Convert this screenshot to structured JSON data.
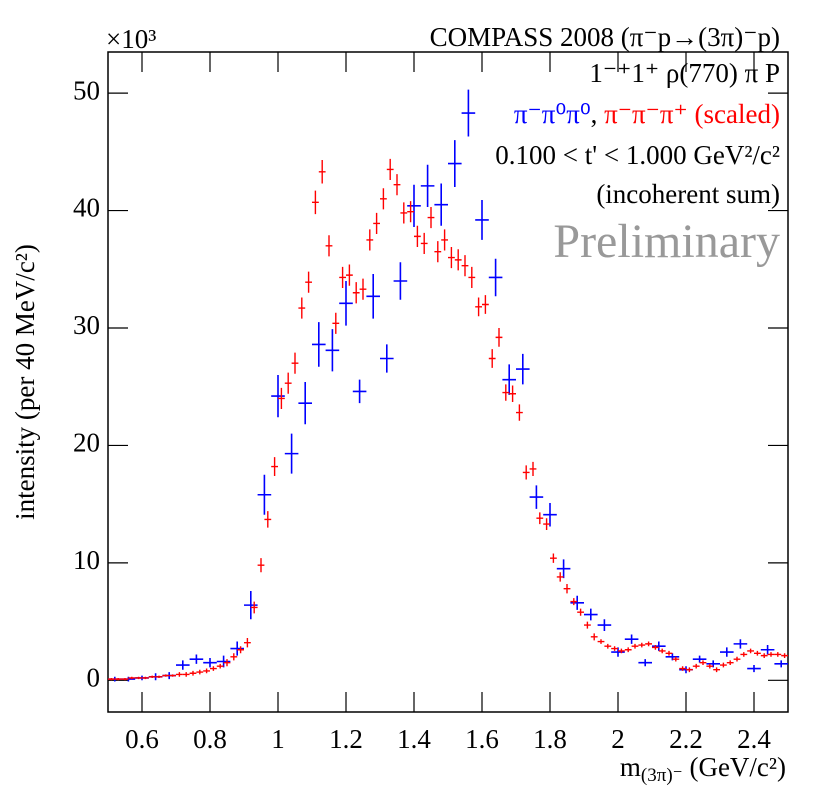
{
  "chart_data": {
    "type": "errorbar",
    "title": "COMPASS 2008 (π⁻p→(3π)⁻p)",
    "annotations": [
      "1⁻⁺1⁺ ρ(770) π P",
      "0.100 < t' < 1.000 GeV²/c²",
      "(incoherent sum)",
      "Preliminary"
    ],
    "legend_separator": ",",
    "y_multiplier": "×10³",
    "y_label": "intensity (per 40 MeV/c²)",
    "x_label": {
      "main": "m",
      "subscript": "(3π)⁻",
      "unit": "(GeV/c²)"
    },
    "xlim": [
      0.5,
      2.5
    ],
    "ylim": [
      -2.7,
      53.5
    ],
    "xticks": [
      0.6,
      0.8,
      1,
      1.2,
      1.4,
      1.6,
      1.8,
      2,
      2.2,
      2.4
    ],
    "yticks": [
      0,
      10,
      20,
      30,
      40,
      50
    ],
    "grid": false,
    "series": [
      {
        "name": "π⁻π⁰π⁰",
        "color": "#0000ff",
        "x": [
          0.52,
          0.56,
          0.6,
          0.64,
          0.68,
          0.72,
          0.76,
          0.8,
          0.84,
          0.88,
          0.92,
          0.96,
          1.0,
          1.04,
          1.08,
          1.12,
          1.16,
          1.2,
          1.24,
          1.28,
          1.32,
          1.36,
          1.4,
          1.44,
          1.48,
          1.52,
          1.56,
          1.6,
          1.64,
          1.68,
          1.72,
          1.76,
          1.8,
          1.84,
          1.88,
          1.92,
          1.96,
          2.0,
          2.04,
          2.08,
          2.12,
          2.16,
          2.2,
          2.24,
          2.28,
          2.32,
          2.36,
          2.4,
          2.44,
          2.48
        ],
        "values": [
          0.1,
          0.1,
          0.2,
          0.3,
          0.4,
          1.3,
          1.8,
          1.5,
          1.6,
          2.7,
          6.4,
          15.8,
          24.2,
          19.3,
          23.6,
          28.6,
          28.1,
          32.1,
          24.6,
          32.7,
          27.4,
          34.0,
          40.4,
          42.1,
          40.5,
          44.0,
          48.3,
          39.2,
          34.3,
          25.6,
          26.5,
          15.6,
          14.1,
          9.5,
          6.6,
          5.6,
          4.7,
          2.4,
          3.5,
          1.5,
          2.9,
          2.0,
          0.9,
          1.8,
          1.4,
          2.4,
          3.1,
          1.0,
          2.6,
          1.4
        ],
        "errors": [
          0.2,
          0.2,
          0.2,
          0.3,
          0.3,
          0.4,
          0.4,
          0.4,
          0.5,
          0.6,
          1.2,
          1.7,
          1.8,
          1.7,
          1.8,
          1.9,
          1.8,
          1.9,
          1.0,
          1.9,
          1.2,
          1.6,
          1.8,
          1.8,
          1.8,
          2.0,
          2.0,
          1.7,
          1.6,
          1.3,
          1.3,
          1.0,
          1.0,
          0.8,
          0.6,
          0.5,
          0.5,
          0.4,
          0.4,
          0.3,
          0.4,
          0.3,
          0.3,
          0.3,
          0.3,
          0.4,
          0.4,
          0.3,
          0.4,
          0.3
        ]
      },
      {
        "name": "π⁻π⁻π⁺ (scaled)",
        "color": "#ff0000",
        "x": [
          0.51,
          0.53,
          0.55,
          0.57,
          0.59,
          0.61,
          0.63,
          0.65,
          0.67,
          0.69,
          0.71,
          0.73,
          0.75,
          0.77,
          0.79,
          0.81,
          0.83,
          0.85,
          0.87,
          0.89,
          0.91,
          0.93,
          0.95,
          0.97,
          0.99,
          1.01,
          1.03,
          1.05,
          1.07,
          1.09,
          1.11,
          1.13,
          1.15,
          1.17,
          1.19,
          1.21,
          1.23,
          1.25,
          1.27,
          1.29,
          1.31,
          1.33,
          1.35,
          1.37,
          1.39,
          1.41,
          1.43,
          1.45,
          1.47,
          1.49,
          1.51,
          1.53,
          1.55,
          1.57,
          1.59,
          1.61,
          1.63,
          1.65,
          1.67,
          1.69,
          1.71,
          1.73,
          1.75,
          1.77,
          1.79,
          1.81,
          1.83,
          1.85,
          1.87,
          1.89,
          1.91,
          1.93,
          1.95,
          1.97,
          1.99,
          2.01,
          2.03,
          2.05,
          2.07,
          2.09,
          2.11,
          2.13,
          2.15,
          2.17,
          2.19,
          2.21,
          2.23,
          2.25,
          2.27,
          2.29,
          2.31,
          2.33,
          2.35,
          2.37,
          2.39,
          2.41,
          2.43,
          2.45,
          2.47,
          2.49
        ],
        "values": [
          0.1,
          0.1,
          0.1,
          0.2,
          0.2,
          0.2,
          0.3,
          0.3,
          0.4,
          0.4,
          0.5,
          0.5,
          0.6,
          0.7,
          0.8,
          1.0,
          1.2,
          1.5,
          2.0,
          2.6,
          3.2,
          6.2,
          9.8,
          13.7,
          18.2,
          24.0,
          25.3,
          27.0,
          31.7,
          33.9,
          40.7,
          43.3,
          37.0,
          30.4,
          34.3,
          34.5,
          33.0,
          33.3,
          37.5,
          38.9,
          41.0,
          43.5,
          42.2,
          39.8,
          39.9,
          37.8,
          37.2,
          39.4,
          36.5,
          37.5,
          36.0,
          35.8,
          35.3,
          34.3,
          31.8,
          32.0,
          27.4,
          29.2,
          24.5,
          24.4,
          22.8,
          17.7,
          18.0,
          13.8,
          13.3,
          10.4,
          8.8,
          7.8,
          6.7,
          5.8,
          4.7,
          3.7,
          3.3,
          2.9,
          2.7,
          2.5,
          2.6,
          2.9,
          3.0,
          3.1,
          2.8,
          2.5,
          2.3,
          1.8,
          1.0,
          0.9,
          1.2,
          1.5,
          1.2,
          0.9,
          1.3,
          1.5,
          1.8,
          2.2,
          2.5,
          2.3,
          2.1,
          2.2,
          2.2,
          2.1
        ],
        "errors": [
          0.1,
          0.1,
          0.1,
          0.1,
          0.1,
          0.1,
          0.1,
          0.1,
          0.1,
          0.1,
          0.2,
          0.2,
          0.2,
          0.2,
          0.2,
          0.2,
          0.2,
          0.3,
          0.3,
          0.3,
          0.4,
          0.5,
          0.6,
          0.7,
          0.8,
          0.9,
          0.9,
          0.9,
          0.9,
          0.9,
          1.0,
          1.0,
          0.9,
          0.9,
          0.9,
          0.9,
          0.9,
          0.9,
          0.9,
          0.9,
          0.9,
          0.9,
          0.9,
          0.9,
          0.9,
          0.9,
          0.9,
          0.9,
          0.9,
          0.9,
          0.9,
          0.9,
          0.9,
          0.9,
          0.8,
          0.8,
          0.8,
          0.8,
          0.7,
          0.7,
          0.7,
          0.6,
          0.6,
          0.5,
          0.5,
          0.4,
          0.4,
          0.4,
          0.3,
          0.3,
          0.3,
          0.3,
          0.2,
          0.2,
          0.2,
          0.2,
          0.2,
          0.2,
          0.2,
          0.2,
          0.2,
          0.2,
          0.2,
          0.2,
          0.2,
          0.2,
          0.2,
          0.2,
          0.2,
          0.2,
          0.2,
          0.2,
          0.2,
          0.2,
          0.2,
          0.2,
          0.2,
          0.2,
          0.2,
          0.2
        ]
      }
    ]
  }
}
